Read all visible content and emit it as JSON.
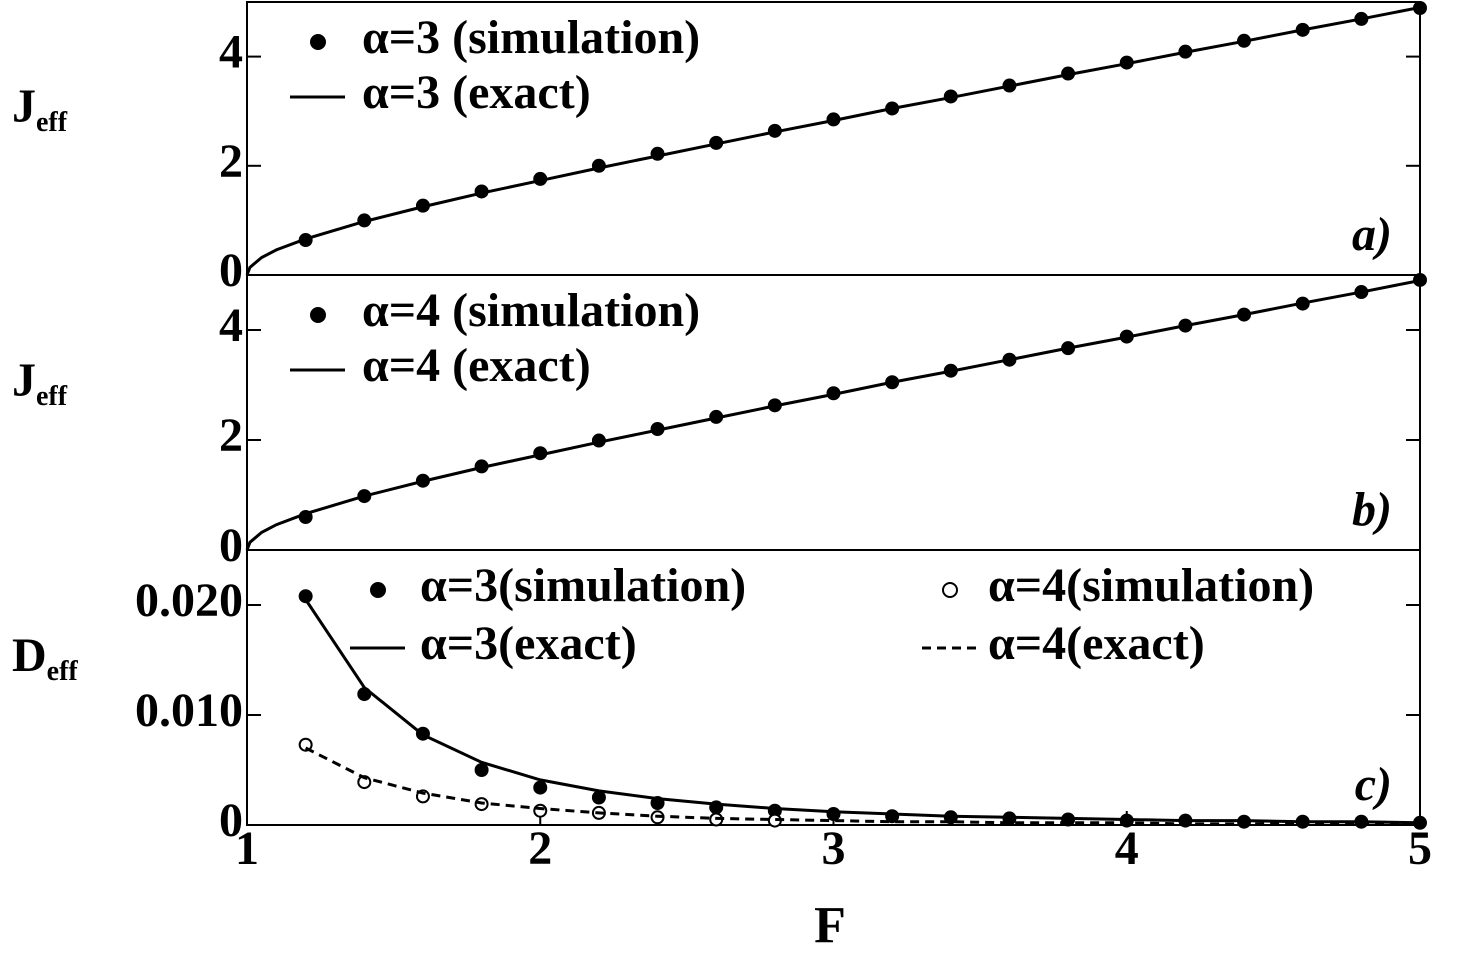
{
  "chart_data": [
    {
      "type": "line",
      "ylabel": "J",
      "ylabel_sub": "eff",
      "panel_label": "a)",
      "xlim": [
        1,
        5
      ],
      "ylim": [
        0,
        5
      ],
      "yticks": [
        0,
        2,
        4
      ],
      "legend_columns": 1,
      "series": [
        {
          "name": "α=3 (simulation)",
          "color": "#000000",
          "style": "markers",
          "marker": "filled",
          "x": [
            1.2,
            1.4,
            1.6,
            1.8,
            2.0,
            2.2,
            2.4,
            2.6,
            2.8,
            3.0,
            3.2,
            3.4,
            3.6,
            3.8,
            4.0,
            4.2,
            4.4,
            4.6,
            4.8,
            5.0
          ],
          "values": [
            0.64,
            1.0,
            1.27,
            1.53,
            1.76,
            2.0,
            2.22,
            2.42,
            2.64,
            2.85,
            3.05,
            3.27,
            3.47,
            3.69,
            3.89,
            4.09,
            4.29,
            4.49,
            4.69,
            4.89
          ]
        },
        {
          "name": "α=3 (exact)",
          "color": "#000000",
          "style": "solid",
          "x": [
            1,
            1.01,
            1.05,
            1.1,
            1.2,
            1.4,
            1.6,
            1.8,
            2.0,
            2.2,
            2.4,
            2.6,
            2.8,
            3.0,
            3.2,
            3.4,
            3.6,
            3.8,
            4.0,
            4.2,
            4.4,
            4.6,
            4.8,
            5.0
          ],
          "values": [
            0,
            0.14,
            0.32,
            0.46,
            0.66,
            0.98,
            1.25,
            1.5,
            1.73,
            1.96,
            2.18,
            2.4,
            2.62,
            2.83,
            3.05,
            3.25,
            3.46,
            3.67,
            3.87,
            4.08,
            4.28,
            4.49,
            4.69,
            4.9
          ]
        }
      ]
    },
    {
      "type": "line",
      "ylabel": "J",
      "ylabel_sub": "eff",
      "panel_label": "b)",
      "xlim": [
        1,
        5
      ],
      "ylim": [
        0,
        5
      ],
      "yticks": [
        0,
        2,
        4
      ],
      "legend_columns": 1,
      "series": [
        {
          "name": "α=4 (simulation)",
          "color": "#000000",
          "style": "markers",
          "marker": "filled",
          "x": [
            1.2,
            1.4,
            1.6,
            1.8,
            2.0,
            2.2,
            2.4,
            2.6,
            2.8,
            3.0,
            3.2,
            3.4,
            3.6,
            3.8,
            4.0,
            4.2,
            4.4,
            4.6,
            4.8,
            5.0
          ],
          "values": [
            0.6,
            0.98,
            1.26,
            1.52,
            1.76,
            1.99,
            2.2,
            2.42,
            2.63,
            2.85,
            3.05,
            3.26,
            3.46,
            3.67,
            3.88,
            4.08,
            4.28,
            4.48,
            4.69,
            4.91
          ]
        },
        {
          "name": "α=4 (exact)",
          "color": "#000000",
          "style": "solid",
          "x": [
            1,
            1.01,
            1.05,
            1.1,
            1.2,
            1.4,
            1.6,
            1.8,
            2.0,
            2.2,
            2.4,
            2.6,
            2.8,
            3.0,
            3.2,
            3.4,
            3.6,
            3.8,
            4.0,
            4.2,
            4.4,
            4.6,
            4.8,
            5.0
          ],
          "values": [
            0,
            0.14,
            0.32,
            0.46,
            0.66,
            0.98,
            1.25,
            1.5,
            1.73,
            1.96,
            2.18,
            2.4,
            2.62,
            2.83,
            3.05,
            3.25,
            3.46,
            3.67,
            3.87,
            4.08,
            4.28,
            4.49,
            4.69,
            4.9
          ]
        }
      ]
    },
    {
      "type": "line",
      "ylabel": "D",
      "ylabel_sub": "eff",
      "panel_label": "c)",
      "xlabel": "F",
      "xlim": [
        1,
        5
      ],
      "xticks": [
        1,
        2,
        3,
        4,
        5
      ],
      "ylim": [
        0,
        0.025
      ],
      "yticks": [
        0,
        {
          "value": 0.01,
          "label": "0.010"
        },
        {
          "value": 0.02,
          "label": "0.020"
        }
      ],
      "legend_columns": 2,
      "series": [
        {
          "name": "α=3(simulation)",
          "color": "#000000",
          "style": "markers",
          "marker": "filled",
          "x": [
            1.2,
            1.4,
            1.6,
            1.8,
            2.0,
            2.2,
            2.4,
            2.6,
            2.8,
            3.0,
            3.2,
            3.4,
            3.6,
            3.8,
            4.0,
            4.2,
            4.4,
            4.6,
            4.8,
            5.0
          ],
          "values": [
            0.0208,
            0.0119,
            0.0083,
            0.005,
            0.0034,
            0.0025,
            0.002,
            0.0016,
            0.0013,
            0.001,
            0.0008,
            0.0007,
            0.0006,
            0.0005,
            0.0004,
            0.0004,
            0.0003,
            0.0003,
            0.0003,
            0.0002
          ]
        },
        {
          "name": "α=4(simulation)",
          "color": "#000000",
          "style": "markers",
          "marker": "open",
          "x": [
            1.2,
            1.4,
            1.6,
            1.8,
            2.0,
            2.2,
            2.4,
            2.6,
            2.8
          ],
          "values": [
            0.0073,
            0.0039,
            0.0026,
            0.0019,
            0.0013,
            0.0011,
            0.0007,
            0.0005,
            0.0004
          ]
        },
        {
          "name": "α=3(exact)",
          "color": "#000000",
          "style": "solid",
          "x": [
            1.2,
            1.4,
            1.6,
            1.8,
            2.0,
            2.2,
            2.4,
            2.6,
            2.8,
            3.0,
            3.2,
            3.4,
            3.6,
            3.8,
            4.0,
            4.2,
            4.4,
            4.6,
            4.8,
            5.0
          ],
          "values": [
            0.0205,
            0.0125,
            0.0082,
            0.0057,
            0.0041,
            0.0031,
            0.0024,
            0.0019,
            0.0015,
            0.0012,
            0.001,
            0.0008,
            0.0007,
            0.0006,
            0.0005,
            0.0004,
            0.0004,
            0.0003,
            0.0003,
            0.0002
          ]
        },
        {
          "name": "α=4(exact)",
          "color": "#000000",
          "style": "dashed",
          "x": [
            1.2,
            1.4,
            1.6,
            1.8,
            2.0,
            2.2,
            2.4,
            2.6,
            2.8,
            3.0,
            3.2,
            3.4,
            3.6,
            3.8,
            4.0,
            4.2,
            4.4,
            4.6,
            4.8,
            5.0
          ],
          "values": [
            0.007,
            0.0043,
            0.0029,
            0.002,
            0.0015,
            0.0011,
            0.0008,
            0.0006,
            0.0005,
            0.0004,
            0.0003,
            0.0003,
            0.0002,
            0.0002,
            0.0002,
            0.0001,
            0.0001,
            0.0001,
            0.0001,
            0.0001
          ]
        }
      ]
    }
  ]
}
